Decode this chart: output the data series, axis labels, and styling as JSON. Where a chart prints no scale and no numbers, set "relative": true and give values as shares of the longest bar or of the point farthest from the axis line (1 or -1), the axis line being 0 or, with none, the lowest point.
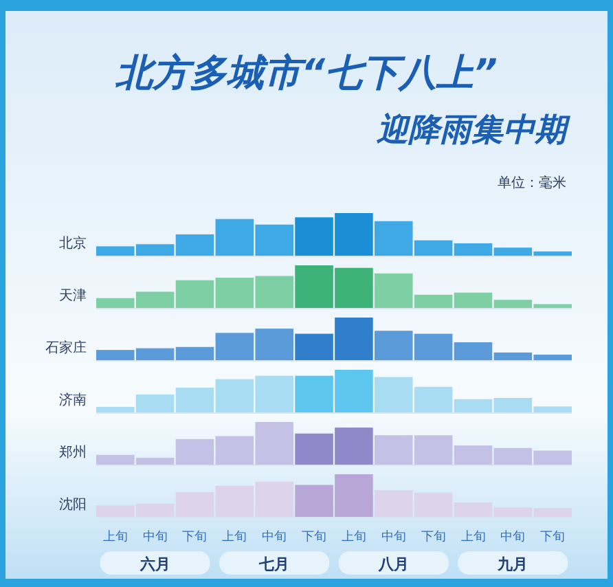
{
  "chart_data": [
    {
      "type": "bar",
      "title": "北方多城市“七下八上”",
      "subtitle": "迎降雨集中期",
      "annotations": [
        "单位：毫米"
      ],
      "ylabel": "北京",
      "relative": true,
      "tick_labels": false,
      "categories": [
        null,
        null,
        null,
        null,
        null,
        null,
        null,
        null,
        null,
        null,
        null,
        null
      ],
      "values": [
        0.22,
        0.27,
        0.5,
        0.86,
        0.73,
        0.9,
        1,
        0.81,
        0.36,
        0.29,
        0.19,
        0.1
      ],
      "colors": [
        "#3fa9e6",
        "#3fa9e6",
        "#3fa9e6",
        "#3fa9e6",
        "#3fa9e6",
        "#1a8fd6",
        "#1a8fd6",
        "#3fa9e6",
        "#3fa9e6",
        "#3fa9e6",
        "#3fa9e6",
        "#3fa9e6"
      ]
    },
    {
      "type": "bar",
      "ylabel": "天津",
      "relative": true,
      "tick_labels": false,
      "categories": [
        null,
        null,
        null,
        null,
        null,
        null,
        null,
        null,
        null,
        null,
        null,
        null
      ],
      "values": [
        0.23,
        0.38,
        0.65,
        0.71,
        0.75,
        1,
        0.94,
        0.81,
        0.31,
        0.36,
        0.19,
        0.09
      ],
      "colors": [
        "#7fcfa5",
        "#7fcfa5",
        "#7fcfa5",
        "#7fcfa5",
        "#7fcfa5",
        "#3db37a",
        "#3db37a",
        "#7fcfa5",
        "#7fcfa5",
        "#7fcfa5",
        "#7fcfa5",
        "#7fcfa5"
      ]
    },
    {
      "type": "bar",
      "ylabel": "石家庄",
      "relative": true,
      "tick_labels": false,
      "categories": [
        null,
        null,
        null,
        null,
        null,
        null,
        null,
        null,
        null,
        null,
        null,
        null
      ],
      "values": [
        0.24,
        0.28,
        0.31,
        0.64,
        0.74,
        0.62,
        1,
        0.69,
        0.62,
        0.42,
        0.18,
        0.13
      ],
      "colors": [
        "#5b9bd9",
        "#5b9bd9",
        "#5b9bd9",
        "#5b9bd9",
        "#5b9bd9",
        "#2f7fcc",
        "#2f7fcc",
        "#5b9bd9",
        "#5b9bd9",
        "#5b9bd9",
        "#5b9bd9",
        "#5b9bd9"
      ]
    },
    {
      "type": "bar",
      "ylabel": "济南",
      "relative": true,
      "tick_labels": false,
      "categories": [
        null,
        null,
        null,
        null,
        null,
        null,
        null,
        null,
        null,
        null,
        null,
        null
      ],
      "values": [
        0.13,
        0.42,
        0.58,
        0.78,
        0.86,
        0.86,
        1,
        0.83,
        0.6,
        0.31,
        0.34,
        0.14
      ],
      "colors": [
        "#a8dcf2",
        "#a8dcf2",
        "#a8dcf2",
        "#a8dcf2",
        "#a8dcf2",
        "#5cc6ee",
        "#5cc6ee",
        "#a8dcf2",
        "#a8dcf2",
        "#a8dcf2",
        "#a8dcf2",
        "#a8dcf2"
      ]
    },
    {
      "type": "bar",
      "ylabel": "郑州",
      "relative": true,
      "tick_labels": false,
      "categories": [
        null,
        null,
        null,
        null,
        null,
        null,
        null,
        null,
        null,
        null,
        null,
        null
      ],
      "values": [
        0.23,
        0.16,
        0.6,
        0.67,
        1,
        0.73,
        0.87,
        0.69,
        0.69,
        0.45,
        0.39,
        0.33
      ],
      "colors": [
        "#c4c0e6",
        "#c4c0e6",
        "#c4c0e6",
        "#c4c0e6",
        "#c4c0e6",
        "#8f89c9",
        "#8f89c9",
        "#c4c0e6",
        "#c4c0e6",
        "#c4c0e6",
        "#c4c0e6",
        "#c4c0e6"
      ]
    },
    {
      "type": "bar",
      "ylabel": "沈阳",
      "relative": true,
      "tick_labels": "x",
      "annotations": [
        "六月",
        "七月",
        "八月",
        "九月"
      ],
      "categories": [
        "上旬",
        "中旬",
        "下旬",
        "上旬",
        "中旬",
        "下旬",
        "上旬",
        "中旬",
        "下旬",
        "上旬",
        "中旬",
        "下旬"
      ],
      "values": [
        0.27,
        0.31,
        0.58,
        0.73,
        0.83,
        0.75,
        1,
        0.63,
        0.57,
        0.34,
        0.22,
        0.2
      ],
      "colors": [
        "#ddd3ea",
        "#ddd3ea",
        "#ddd3ea",
        "#ddd3ea",
        "#ddd3ea",
        "#b8a6d6",
        "#b8a6d6",
        "#ddd3ea",
        "#ddd3ea",
        "#ddd3ea",
        "#ddd3ea",
        "#ddd3ea"
      ]
    }
  ]
}
